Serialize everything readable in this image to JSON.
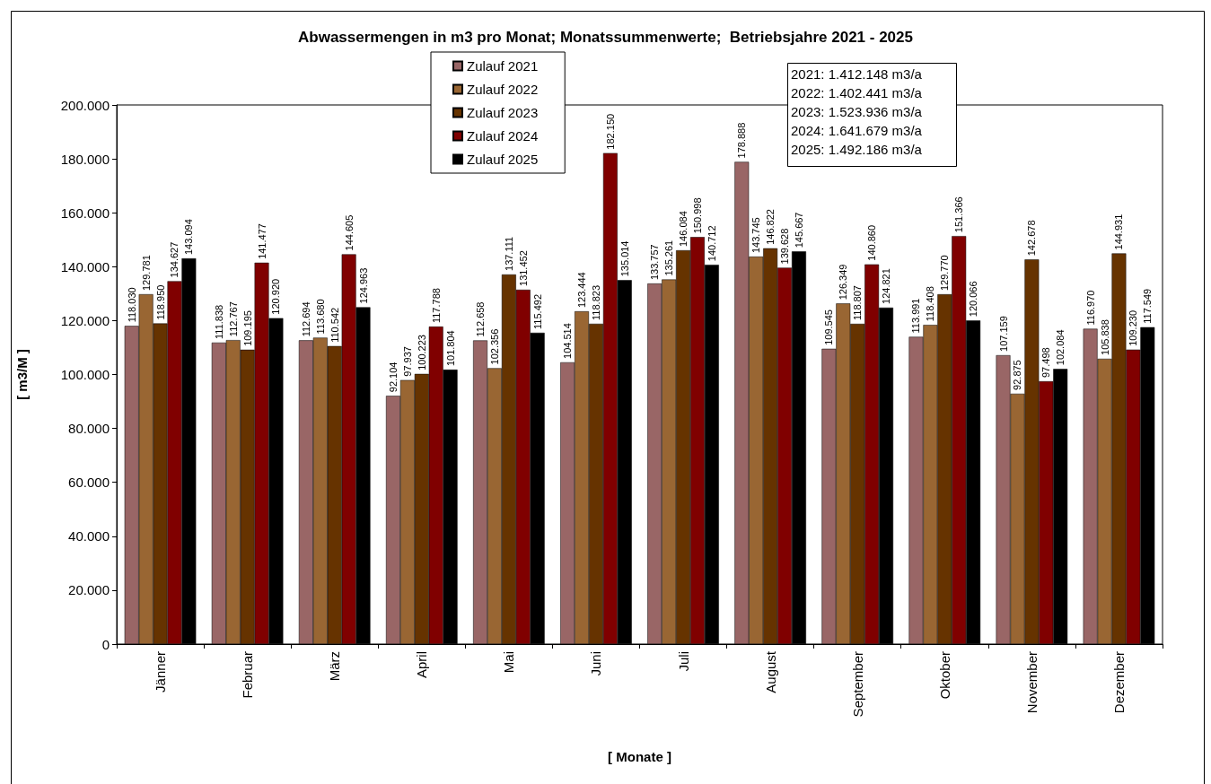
{
  "chart_data": {
    "type": "bar",
    "title": "Abwassermengen in m3 pro Monat; Monatssummenwerte;  Betriebsjahre 2021 - 2025",
    "xlabel": "[ Monate ]",
    "ylabel": "[ m3/M ]",
    "categories": [
      "Jänner",
      "Februar",
      "März",
      "April",
      "Mai",
      "Juni",
      "Juli",
      "August",
      "September",
      "Oktober",
      "November",
      "Dezember"
    ],
    "series": [
      {
        "name": "Zulauf 2021",
        "color": "#996666",
        "values": [
          118030,
          111838,
          112694,
          92104,
          112658,
          104514,
          133757,
          178888,
          109545,
          113991,
          107159,
          116970
        ],
        "value_labels": [
          "118.030",
          "111.838",
          "112.694",
          "92.104",
          "112.658",
          "104.514",
          "133.757",
          "178.888",
          "109.545",
          "113.991",
          "107.159",
          "116.970"
        ]
      },
      {
        "name": "Zulauf 2022",
        "color": "#996633",
        "values": [
          129781,
          112767,
          113680,
          97937,
          102356,
          123444,
          135261,
          143745,
          126349,
          118408,
          92875,
          105838
        ],
        "value_labels": [
          "129.781",
          "112.767",
          "113.680",
          "97.937",
          "102.356",
          "123.444",
          "135.261",
          "143.745",
          "126.349",
          "118.408",
          "92.875",
          "105.838"
        ]
      },
      {
        "name": "Zulauf 2023",
        "color": "#663300",
        "values": [
          118950,
          109195,
          110542,
          100223,
          137111,
          118823,
          146084,
          146822,
          118807,
          129770,
          142678,
          144931
        ],
        "value_labels": [
          "118.950",
          "109.195",
          "110.542",
          "100.223",
          "137.111",
          "118.823",
          "146.084",
          "146.822",
          "118.807",
          "129.770",
          "142.678",
          "144.931"
        ]
      },
      {
        "name": "Zulauf 2024",
        "color": "#800000",
        "values": [
          134627,
          141477,
          144605,
          117788,
          131452,
          182150,
          150998,
          139628,
          140860,
          151366,
          97498,
          109230
        ],
        "value_labels": [
          "134.627",
          "141.477",
          "144.605",
          "117.788",
          "131.452",
          "182.150",
          "150.998",
          "139.628",
          "140.860",
          "151.366",
          "97.498",
          "109.230"
        ]
      },
      {
        "name": "Zulauf 2025",
        "color": "#000000",
        "values": [
          143094,
          120920,
          124963,
          101804,
          115492,
          135014,
          140712,
          145667,
          124821,
          120066,
          102084,
          117549
        ],
        "value_labels": [
          "143.094",
          "120.920",
          "124.963",
          "101.804",
          "115.492",
          "135.014",
          "140.712",
          "145.667",
          "124.821",
          "120.066",
          "102.084",
          "117.549"
        ]
      }
    ],
    "ylim": [
      0,
      200000
    ],
    "yticks": [
      {
        "value": 0,
        "label": "0"
      },
      {
        "value": 20000,
        "label": "20.000"
      },
      {
        "value": 40000,
        "label": "40.000"
      },
      {
        "value": 60000,
        "label": "60.000"
      },
      {
        "value": 80000,
        "label": "80.000"
      },
      {
        "value": 100000,
        "label": "100.000"
      },
      {
        "value": 120000,
        "label": "120.000"
      },
      {
        "value": 140000,
        "label": "140.000"
      },
      {
        "value": 160000,
        "label": "160.000"
      },
      {
        "value": 180000,
        "label": "180.000"
      },
      {
        "value": 200000,
        "label": "200.000"
      }
    ],
    "grid": false,
    "legend": "top",
    "annotations": [
      "2021: 1.412.148 m3/a",
      "2022: 1.402.441 m3/a",
      "2023: 1.523.936 m3/a",
      "2024: 1.641.679 m3/a",
      "2025: 1.492.186 m3/a"
    ]
  }
}
